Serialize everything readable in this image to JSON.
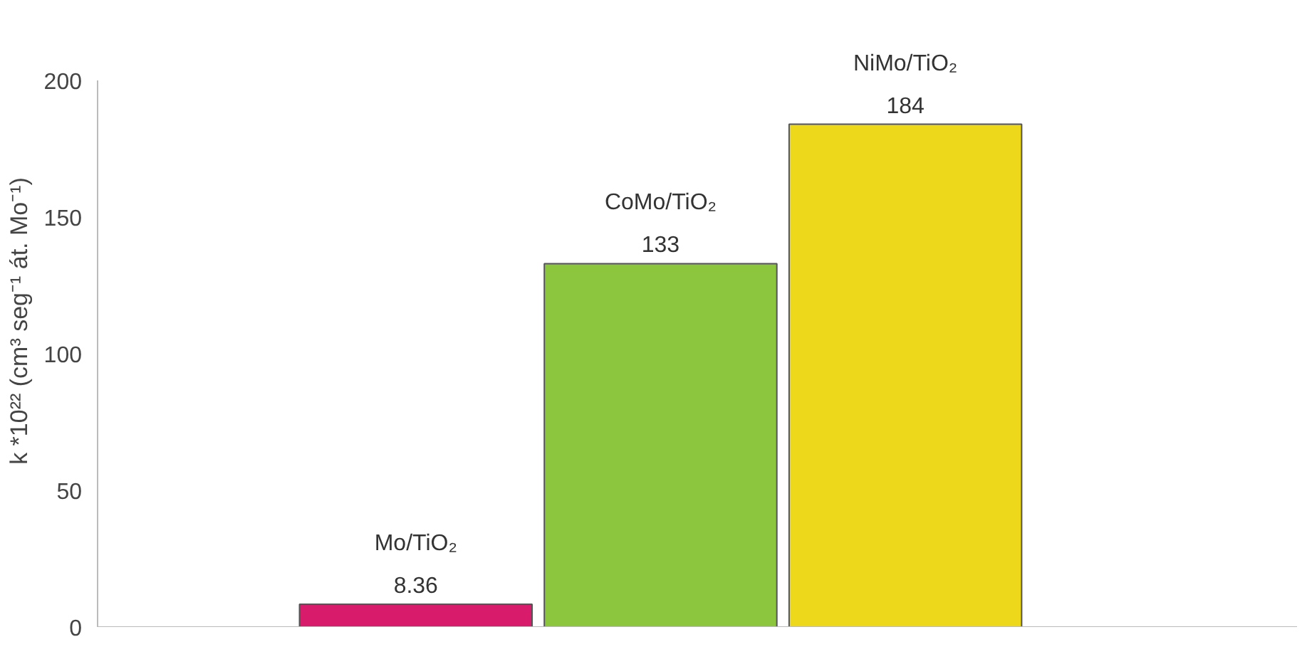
{
  "chart_data": {
    "type": "bar",
    "ylabel": "k *10²² (cm³ seg⁻¹ át. Mo⁻¹)",
    "categories": [
      "Mo/TiO₂",
      "CoMo/TiO₂",
      "NiMo/TiO₂"
    ],
    "values": [
      8.36,
      133,
      184
    ],
    "colors": [
      "#d81b6a",
      "#8cc63f",
      "#eed81c"
    ],
    "ylim": [
      0,
      200
    ],
    "yticks": [
      0,
      50,
      100,
      150,
      200
    ],
    "data_labels": true,
    "grid": false
  }
}
